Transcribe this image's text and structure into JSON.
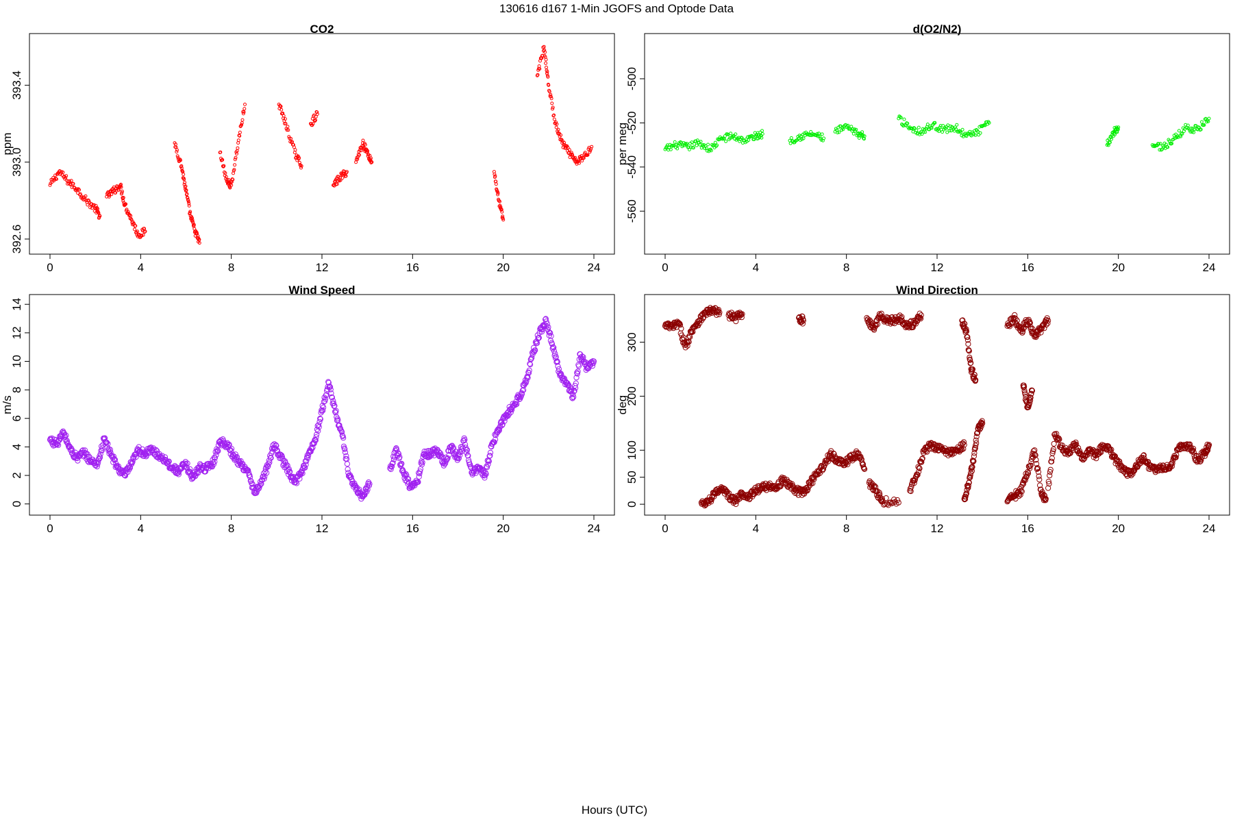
{
  "figure": {
    "title": "130616   d167   1-Min  JGOFS and Optode Data",
    "xlabel": "Hours (UTC)"
  },
  "chart_data": [
    {
      "type": "scatter",
      "id": "co2",
      "title": "CO2",
      "ylabel": "ppm",
      "xlim": [
        0,
        24
      ],
      "ylim": [
        392.55,
        393.64
      ],
      "xticks": [
        0,
        4,
        8,
        12,
        16,
        20,
        24
      ],
      "yticks": [
        392.6,
        393.0,
        393.4
      ],
      "ytick_labels": [
        "392.6",
        "393.0",
        "393.4"
      ],
      "color": "#ff0000",
      "marker_radius": 2,
      "series": [
        {
          "x": [
            0.0,
            0.4,
            0.8,
            1.2,
            1.6,
            2.0,
            2.2
          ],
          "y": [
            392.88,
            392.95,
            392.9,
            392.86,
            392.8,
            392.76,
            392.72
          ]
        },
        {
          "x": [
            2.5,
            2.8,
            3.1,
            3.3,
            3.6,
            3.9,
            4.2
          ],
          "y": [
            392.82,
            392.85,
            392.88,
            392.78,
            392.7,
            392.62,
            392.64
          ]
        },
        {
          "x": [
            5.5,
            5.8,
            6.0,
            6.2,
            6.4,
            6.6
          ],
          "y": [
            393.1,
            392.98,
            392.85,
            392.72,
            392.64,
            392.58
          ]
        },
        {
          "x": [
            7.5,
            7.8,
            8.0,
            8.3,
            8.6
          ],
          "y": [
            393.05,
            392.9,
            392.88,
            393.1,
            393.3
          ]
        },
        {
          "x": [
            10.1,
            10.4,
            10.8,
            11.1
          ],
          "y": [
            393.3,
            393.2,
            393.05,
            392.98
          ]
        },
        {
          "x": [
            11.5,
            11.8
          ],
          "y": [
            393.2,
            393.25
          ]
        },
        {
          "x": [
            12.5,
            12.8,
            13.1
          ],
          "y": [
            392.88,
            392.92,
            392.95
          ]
        },
        {
          "x": [
            13.5,
            13.8,
            14.0,
            14.2
          ],
          "y": [
            393.0,
            393.1,
            393.05,
            393.0
          ]
        },
        {
          "x": [
            19.6,
            19.8,
            20.0
          ],
          "y": [
            392.95,
            392.8,
            392.7
          ]
        },
        {
          "x": [
            21.5,
            21.8,
            22.0,
            22.3,
            22.6,
            22.9,
            23.2,
            23.5,
            23.9
          ],
          "y": [
            393.45,
            393.6,
            393.4,
            393.2,
            393.1,
            393.05,
            393.0,
            393.02,
            393.08
          ]
        }
      ]
    },
    {
      "type": "scatter",
      "id": "do2n2",
      "title": "d(O2/N2)",
      "ylabel": "per meg",
      "xlim": [
        0,
        24
      ],
      "ylim": [
        -577,
        -482
      ],
      "xticks": [
        0,
        4,
        8,
        12,
        16,
        20,
        24
      ],
      "yticks": [
        -560,
        -540,
        -520,
        -500
      ],
      "ytick_labels": [
        "-560",
        "-540",
        "-520",
        "-500"
      ],
      "color": "#00ee00",
      "marker_radius": 2,
      "series": [
        {
          "x": [
            0.0,
            0.5,
            1.0,
            1.5,
            2.0,
            2.5,
            3.0,
            3.5,
            4.0,
            4.3
          ],
          "y": [
            -532,
            -530,
            -531,
            -529,
            -532,
            -527,
            -526,
            -528,
            -526,
            -525
          ]
        },
        {
          "x": [
            5.5,
            6.0,
            6.5,
            7.0
          ],
          "y": [
            -528,
            -526,
            -525,
            -527
          ]
        },
        {
          "x": [
            7.5,
            8.0,
            8.5,
            8.8
          ],
          "y": [
            -524,
            -522,
            -525,
            -526
          ]
        },
        {
          "x": [
            10.3,
            10.8,
            11.3,
            11.8,
            12.3,
            12.8,
            13.3,
            13.8,
            14.3
          ],
          "y": [
            -518,
            -522,
            -524,
            -521,
            -523,
            -522,
            -526,
            -524,
            -520
          ]
        },
        {
          "x": [
            19.5,
            19.8,
            20.0
          ],
          "y": [
            -530,
            -524,
            -522
          ]
        },
        {
          "x": [
            21.5,
            22.0,
            22.5,
            23.0,
            23.5,
            24.0
          ],
          "y": [
            -530,
            -531,
            -527,
            -522,
            -523,
            -518
          ]
        }
      ]
    },
    {
      "type": "scatter",
      "id": "wspd",
      "title": "Wind Speed",
      "ylabel": "m/s",
      "xlim": [
        0,
        24
      ],
      "ylim": [
        -0.4,
        14.3
      ],
      "xticks": [
        0,
        4,
        8,
        12,
        16,
        20,
        24
      ],
      "yticks": [
        0,
        2,
        4,
        6,
        8,
        10,
        12,
        14
      ],
      "ytick_labels": [
        "0",
        "2",
        "4",
        "6",
        "8",
        "10",
        "12",
        "14"
      ],
      "color": "#a020f0",
      "marker_radius": 3.6,
      "series": [
        {
          "x": [
            0.0,
            0.3,
            0.6,
            0.9,
            1.2,
            1.5,
            1.8,
            2.1,
            2.4,
            2.7,
            3.0,
            3.3,
            3.6,
            3.9,
            4.2,
            4.5,
            4.8,
            5.1,
            5.4,
            5.7,
            6.0,
            6.3,
            6.6,
            6.9,
            7.2,
            7.5,
            7.8,
            8.1,
            8.4,
            8.7,
            9.0,
            9.3,
            9.6,
            9.9,
            10.2,
            10.5,
            10.8,
            11.1,
            11.4,
            11.7,
            12.0,
            12.3,
            12.6,
            12.9,
            13.2,
            13.5,
            13.8,
            14.1
          ],
          "y": [
            4.5,
            4.2,
            5.0,
            3.8,
            3.2,
            3.6,
            3.0,
            2.8,
            4.6,
            3.4,
            2.5,
            2.0,
            2.8,
            3.8,
            3.5,
            3.8,
            3.4,
            3.1,
            2.5,
            2.3,
            2.8,
            1.8,
            2.6,
            2.5,
            2.9,
            4.4,
            4.2,
            3.4,
            2.8,
            2.4,
            0.8,
            1.4,
            2.6,
            4.2,
            3.2,
            2.4,
            1.5,
            2.2,
            3.4,
            4.5,
            6.5,
            8.5,
            6.4,
            4.8,
            2.0,
            1.0,
            0.5,
            1.4
          ]
        },
        {
          "x": [
            15.0,
            15.3,
            15.6,
            15.9,
            16.2,
            16.5,
            16.8,
            17.1,
            17.4,
            17.7,
            18.0,
            18.3,
            18.6,
            18.9,
            19.2,
            19.5,
            19.8,
            20.1,
            20.4,
            20.7,
            21.0,
            21.3,
            21.6,
            21.9,
            22.2,
            22.5,
            22.8,
            23.1,
            23.4,
            23.7,
            24.0
          ],
          "y": [
            2.5,
            3.8,
            2.2,
            1.2,
            1.5,
            3.5,
            3.5,
            3.8,
            2.8,
            4.0,
            3.2,
            4.5,
            2.2,
            2.5,
            2.0,
            4.2,
            5.2,
            6.2,
            6.8,
            7.5,
            8.5,
            10.5,
            12.0,
            12.8,
            11.0,
            9.0,
            8.5,
            7.5,
            10.5,
            9.5,
            10.0
          ]
        }
      ]
    },
    {
      "type": "scatter",
      "id": "wdir",
      "title": "Wind Direction",
      "ylabel": "deg",
      "xlim": [
        0,
        24
      ],
      "ylim": [
        -10,
        378
      ],
      "xticks": [
        0,
        4,
        8,
        12,
        16,
        20,
        24
      ],
      "yticks": [
        0,
        50,
        100,
        200,
        300
      ],
      "ytick_labels": [
        "0",
        "50",
        "100",
        "200",
        "300"
      ],
      "color": "#8b0000",
      "marker_radius": 3.6,
      "series": [
        {
          "x": [
            0.0,
            0.3,
            0.6,
            0.9,
            1.2,
            1.5,
            1.8,
            2.1,
            2.4
          ],
          "y": [
            330,
            328,
            335,
            290,
            325,
            340,
            355,
            358,
            355
          ]
        },
        {
          "x": [
            2.8,
            3.1,
            3.4
          ],
          "y": [
            350,
            345,
            352
          ]
        },
        {
          "x": [
            5.9,
            6.1
          ],
          "y": [
            345,
            340
          ]
        },
        {
          "x": [
            8.9,
            9.2,
            9.5,
            9.8,
            10.1,
            10.4,
            10.7,
            11.0,
            11.3
          ],
          "y": [
            345,
            325,
            350,
            340,
            340,
            345,
            330,
            335,
            350
          ]
        },
        {
          "x": [
            13.1,
            13.3,
            13.5,
            13.7
          ],
          "y": [
            340,
            320,
            250,
            230
          ]
        },
        {
          "x": [
            15.1,
            15.4,
            15.7,
            16.0,
            16.3,
            16.6,
            16.9
          ],
          "y": [
            330,
            345,
            320,
            340,
            310,
            325,
            340
          ]
        },
        {
          "x": [
            15.8,
            16.0,
            16.2
          ],
          "y": [
            220,
            180,
            210
          ]
        },
        {
          "x": [
            1.6,
            1.9,
            2.2,
            2.5,
            2.8,
            3.1,
            3.4,
            3.7,
            4.0,
            4.3,
            4.6,
            4.9,
            5.2,
            5.5,
            5.8,
            6.1,
            6.4,
            6.7,
            7.0,
            7.3,
            7.6,
            7.9,
            8.2,
            8.5,
            8.8
          ],
          "y": [
            3,
            5,
            20,
            30,
            15,
            5,
            20,
            15,
            25,
            30,
            35,
            30,
            45,
            35,
            25,
            20,
            40,
            55,
            70,
            95,
            80,
            75,
            85,
            95,
            65
          ]
        },
        {
          "x": [
            9.0,
            9.3,
            9.6,
            10.3
          ],
          "y": [
            40,
            25,
            5,
            3
          ]
        },
        {
          "x": [
            10.8,
            11.1,
            11.4,
            11.7,
            12.0,
            12.3,
            12.6,
            12.9,
            13.2
          ],
          "y": [
            25,
            55,
            95,
            110,
            105,
            98,
            95,
            100,
            110
          ]
        },
        {
          "x": [
            13.2,
            13.4,
            13.6,
            13.8,
            14.0
          ],
          "y": [
            10,
            40,
            80,
            140,
            150
          ]
        },
        {
          "x": [
            15.1,
            15.4,
            15.7,
            16.0,
            16.3,
            16.6,
            16.8
          ],
          "y": [
            5,
            15,
            25,
            60,
            100,
            20,
            10
          ]
        },
        {
          "x": [
            16.9,
            17.2,
            17.5,
            17.8,
            18.1,
            18.4,
            18.7,
            19.0,
            19.3,
            19.6,
            19.9,
            20.2,
            20.5,
            20.8,
            21.1,
            21.4,
            21.7,
            22.0,
            22.3,
            22.6,
            22.9,
            23.2,
            23.5,
            23.8,
            24.0
          ],
          "y": [
            30,
            130,
            105,
            95,
            110,
            85,
            100,
            90,
            105,
            100,
            80,
            65,
            55,
            70,
            90,
            65,
            65,
            68,
            70,
            100,
            110,
            105,
            80,
            95,
            110
          ]
        }
      ]
    }
  ]
}
